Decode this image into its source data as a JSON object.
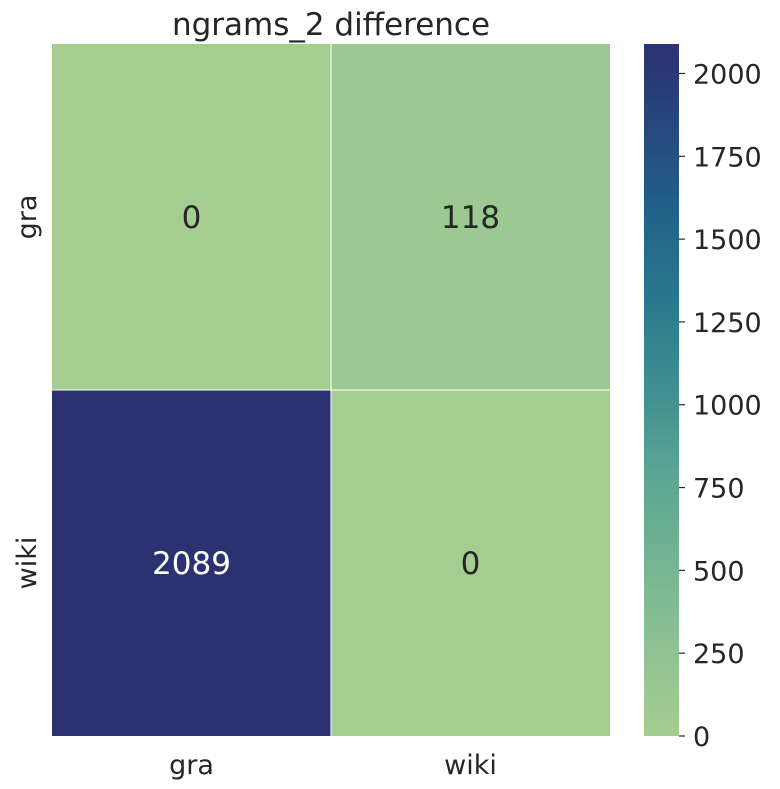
{
  "chart_data": {
    "type": "heatmap",
    "title": "ngrams_2 difference",
    "x_categories": [
      "gra",
      "wiki"
    ],
    "y_categories": [
      "gra",
      "wiki"
    ],
    "values": [
      [
        0,
        118
      ],
      [
        2089,
        0
      ]
    ],
    "cell_labels": [
      [
        "0",
        "118"
      ],
      [
        "2089",
        "0"
      ]
    ],
    "colormap": "crest",
    "colorbar": {
      "min": 0,
      "max": 2089,
      "ticks": [
        0,
        250,
        500,
        750,
        1000,
        1250,
        1500,
        1750,
        2000
      ],
      "tick_labels": [
        "0",
        "250",
        "500",
        "750",
        "1000",
        "1250",
        "1500",
        "1750",
        "2000"
      ]
    },
    "colors": {
      "low": "#a5cd90",
      "high": "#2c3172",
      "text_dark": "#262626",
      "text_light": "#ffffff",
      "grid_line": "#ffffff"
    }
  }
}
